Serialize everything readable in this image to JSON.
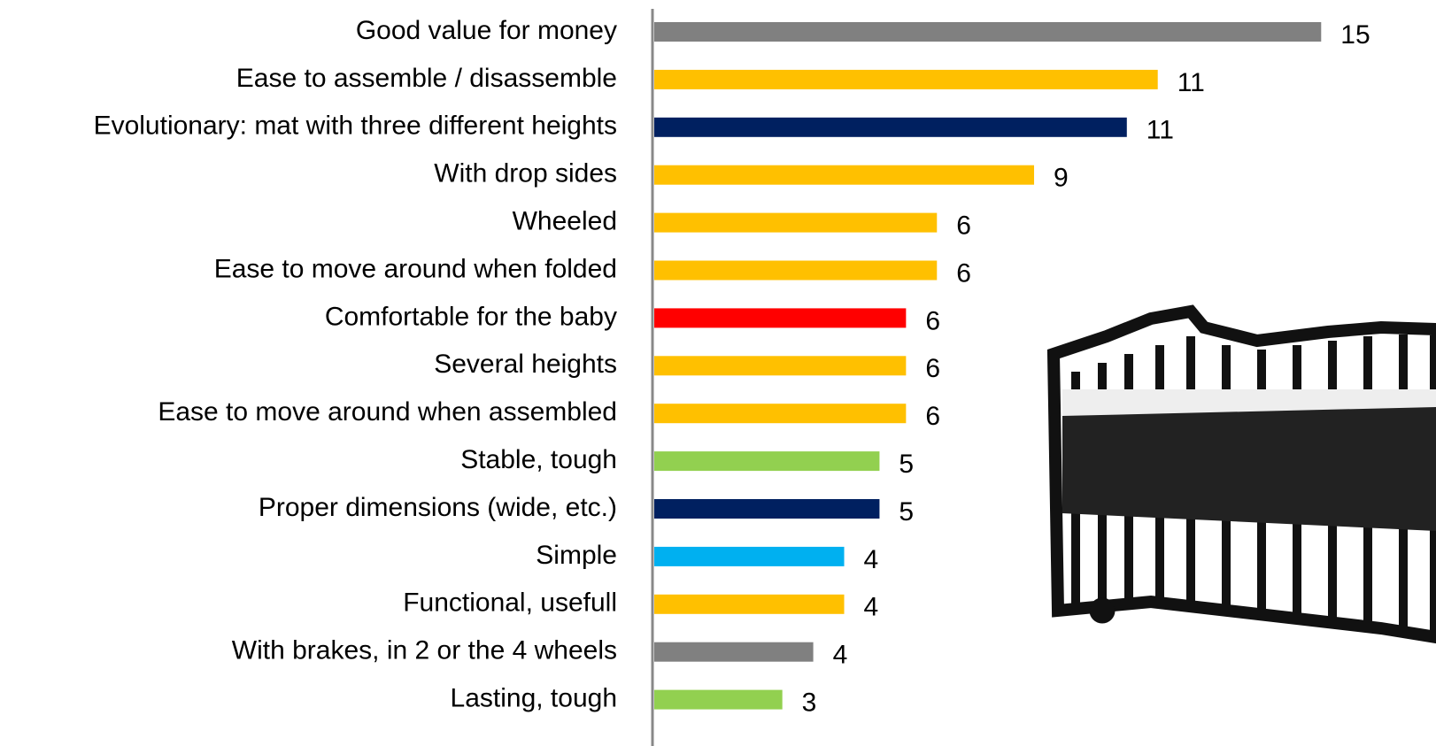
{
  "chart_data": {
    "type": "bar",
    "orientation": "horizontal",
    "categories": [
      "Good value for money",
      "Ease to assemble / disassemble",
      "Evolutionary: mat with three different heights",
      "With drop sides",
      "Wheeled",
      "Ease to move around when folded",
      "Comfortable for the baby",
      "Several heights",
      "Ease to move around when assembled",
      "Stable, tough",
      "Proper dimensions (wide, etc.)",
      "Simple",
      "Functional, usefull",
      "With brakes, in 2 or the 4 wheels",
      "Lasting, tough"
    ],
    "values": [
      15.1,
      11.4,
      10.7,
      8.6,
      6.4,
      6.4,
      5.7,
      5.7,
      5.7,
      5.1,
      5.1,
      4.3,
      4.3,
      3.6,
      2.9
    ],
    "value_labels": [
      "15",
      "11",
      "11",
      "9",
      "6",
      "6",
      "6",
      "6",
      "6",
      "5",
      "5",
      "4",
      "4",
      "4",
      "3"
    ],
    "colors": [
      "#808080",
      "#ffc000",
      "#002060",
      "#ffc000",
      "#ffc000",
      "#ffc000",
      "#ff0000",
      "#ffc000",
      "#ffc000",
      "#92d050",
      "#002060",
      "#00b0f0",
      "#ffc000",
      "#808080",
      "#92d050"
    ],
    "xlim": [
      0,
      17.7
    ]
  }
}
